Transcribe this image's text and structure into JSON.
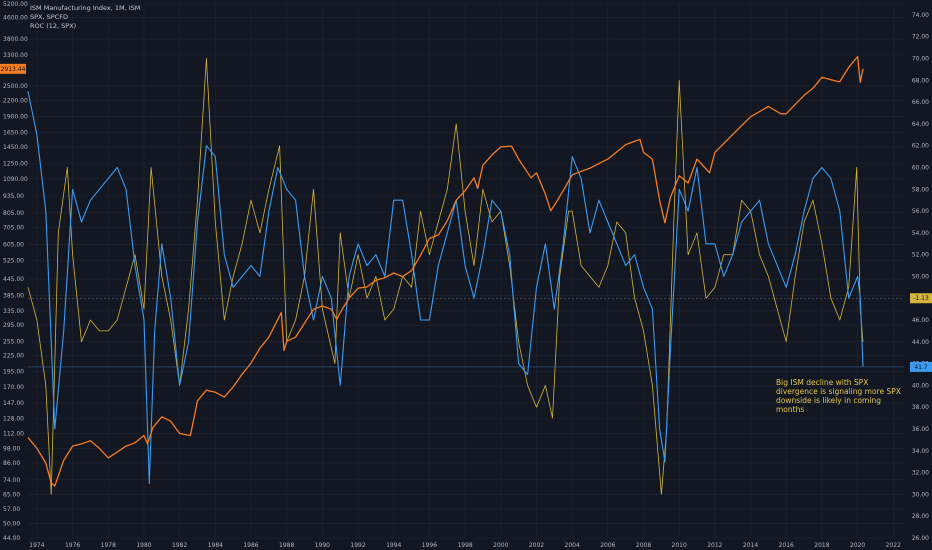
{
  "legend": {
    "line1": "ISM Manufacturing Index, 1M, ISM",
    "line2": "SPX, SPCFD",
    "line3": "ROC (12, SPX)"
  },
  "annotation": "Big ISM decline with SPX divergence is signaling more SPX downside is likely in coming months",
  "colors": {
    "background": "#131722",
    "spx": "#f57c1f",
    "ism": "#3b9bf2",
    "roc": "#d4b53a",
    "grid": "#1f2533"
  },
  "chart_data": {
    "type": "line",
    "x_ticks": [
      "1974",
      "1976",
      "1978",
      "1980",
      "1982",
      "1984",
      "1986",
      "1988",
      "1990",
      "1992",
      "1994",
      "1996",
      "1998",
      "2000",
      "2002",
      "2004",
      "2006",
      "2008",
      "2010",
      "2012",
      "2014",
      "2016",
      "2018",
      "2020",
      "2022"
    ],
    "xlim": [
      1973.5,
      2022.6
    ],
    "left_axis": {
      "scale": "log",
      "ylim": [
        44,
        5200
      ],
      "ticks": [
        "5200.00",
        "4600.00",
        "3800.00",
        "3300.00",
        "2500.00",
        "2200.00",
        "1900.00",
        "1650.00",
        "1450.00",
        "1250.00",
        "1090.00",
        "935.00",
        "805.00",
        "705.00",
        "605.00",
        "525.00",
        "445.00",
        "385.00",
        "335.00",
        "295.00",
        "255.00",
        "225.00",
        "195.00",
        "170.00",
        "147.00",
        "128.00",
        "112.00",
        "98.00",
        "86.00",
        "74.00",
        "65.00",
        "57.00",
        "50.00",
        "44.00"
      ],
      "current_label": "2913.44"
    },
    "right_axis": {
      "scale": "linear",
      "ylim": [
        26,
        75
      ],
      "ticks": [
        "74.00",
        "72.00",
        "70.00",
        "68.00",
        "66.00",
        "64.00",
        "62.00",
        "60.00",
        "58.00",
        "56.00",
        "54.00",
        "52.00",
        "50.00",
        "48.00",
        "46.00",
        "44.00",
        "42.00",
        "40.00",
        "38.00",
        "36.00",
        "34.00",
        "32.00",
        "30.00",
        "28.00",
        "26.00"
      ],
      "roc_label": "-1.13",
      "ism_label": "41.7"
    },
    "series": [
      {
        "name": "SPX",
        "axis": "left",
        "x": [
          1973.5,
          1974.0,
          1974.5,
          1974.8,
          1975.0,
          1975.5,
          1976.0,
          1976.5,
          1977.0,
          1977.5,
          1978.0,
          1978.5,
          1979.0,
          1979.5,
          1980.0,
          1980.2,
          1980.5,
          1981.0,
          1981.5,
          1982.0,
          1982.6,
          1983.0,
          1983.5,
          1984.0,
          1984.5,
          1985.0,
          1985.5,
          1986.0,
          1986.5,
          1987.0,
          1987.7,
          1987.85,
          1988.0,
          1988.5,
          1989.0,
          1989.5,
          1990.0,
          1990.5,
          1990.8,
          1991.0,
          1991.5,
          1992.0,
          1992.5,
          1993.0,
          1993.5,
          1994.0,
          1994.5,
          1995.0,
          1995.5,
          1996.0,
          1996.5,
          1997.0,
          1997.5,
          1998.0,
          1998.5,
          1998.7,
          1999.0,
          1999.5,
          2000.0,
          2000.6,
          2001.0,
          2001.7,
          2002.0,
          2002.5,
          2002.8,
          2003.0,
          2003.5,
          2004.0,
          2005.0,
          2006.0,
          2007.0,
          2007.8,
          2008.0,
          2008.5,
          2008.9,
          2009.2,
          2009.5,
          2010.0,
          2010.5,
          2011.0,
          2011.7,
          2012.0,
          2013.0,
          2014.0,
          2015.0,
          2015.7,
          2016.0,
          2016.5,
          2017.0,
          2017.5,
          2018.0,
          2018.9,
          2019.0,
          2019.5,
          2020.0,
          2020.15,
          2020.3
        ],
        "values": [
          108,
          98,
          86,
          72,
          70,
          88,
          100,
          102,
          105,
          98,
          90,
          95,
          100,
          103,
          110,
          102,
          118,
          130,
          125,
          112,
          110,
          150,
          165,
          162,
          155,
          170,
          190,
          210,
          240,
          265,
          330,
          235,
          255,
          265,
          300,
          340,
          350,
          340,
          310,
          330,
          375,
          410,
          415,
          440,
          450,
          470,
          455,
          480,
          550,
          640,
          660,
          750,
          900,
          980,
          1100,
          1000,
          1230,
          1350,
          1450,
          1460,
          1300,
          1100,
          1150,
          950,
          820,
          860,
          980,
          1130,
          1200,
          1300,
          1480,
          1550,
          1380,
          1300,
          900,
          735,
          920,
          1120,
          1050,
          1300,
          1150,
          1380,
          1620,
          1900,
          2080,
          1950,
          1950,
          2120,
          2300,
          2450,
          2700,
          2600,
          2600,
          2950,
          3250,
          2580,
          2913
        ]
      },
      {
        "name": "ISM Manufacturing Index",
        "axis": "right",
        "x": [
          1973.5,
          1974.0,
          1974.5,
          1975.0,
          1975.5,
          1976.0,
          1976.5,
          1977.0,
          1977.5,
          1978.0,
          1978.5,
          1979.0,
          1979.5,
          1980.0,
          1980.3,
          1980.6,
          1981.0,
          1981.5,
          1982.0,
          1982.5,
          1983.0,
          1983.5,
          1984.0,
          1984.5,
          1985.0,
          1985.5,
          1986.0,
          1986.5,
          1987.0,
          1987.5,
          1988.0,
          1988.5,
          1989.0,
          1989.5,
          1990.0,
          1990.5,
          1991.0,
          1991.5,
          1992.0,
          1992.5,
          1993.0,
          1993.5,
          1994.0,
          1994.5,
          1995.0,
          1995.5,
          1996.0,
          1996.5,
          1997.0,
          1997.5,
          1998.0,
          1998.5,
          1999.0,
          1999.5,
          2000.0,
          2000.5,
          2001.0,
          2001.5,
          2002.0,
          2002.5,
          2003.0,
          2003.5,
          2004.0,
          2004.5,
          2005.0,
          2005.5,
          2006.0,
          2006.5,
          2007.0,
          2007.5,
          2008.0,
          2008.5,
          2008.9,
          2009.2,
          2009.5,
          2010.0,
          2010.5,
          2011.0,
          2011.5,
          2012.0,
          2012.5,
          2013.0,
          2013.5,
          2014.0,
          2014.5,
          2015.0,
          2015.5,
          2016.0,
          2016.5,
          2017.0,
          2017.5,
          2018.0,
          2018.5,
          2019.0,
          2019.5,
          2020.0,
          2020.15,
          2020.3
        ],
        "values": [
          67,
          63,
          56,
          36,
          45,
          58,
          55,
          57,
          58,
          59,
          60,
          58,
          51,
          46,
          31,
          45,
          53,
          48,
          40,
          44,
          55,
          62,
          61,
          52,
          49,
          50,
          51,
          50,
          56,
          60,
          58,
          57,
          50,
          46,
          50,
          48,
          40,
          50,
          53,
          51,
          52,
          50,
          57,
          57,
          52,
          46,
          46,
          51,
          54,
          57,
          51,
          48,
          52,
          57,
          56,
          52,
          42,
          41,
          49,
          53,
          47,
          53,
          61,
          59,
          54,
          57,
          55,
          53,
          51,
          52,
          49,
          47,
          36,
          33,
          43,
          58,
          56,
          60,
          53,
          53,
          50,
          52,
          55,
          56,
          57,
          53,
          51,
          49,
          52,
          56,
          59,
          60,
          59,
          56,
          48,
          50,
          48,
          41.7
        ]
      },
      {
        "name": "ROC (12, SPX)",
        "axis": "right",
        "x": [
          1973.5,
          1974.0,
          1974.5,
          1974.8,
          1975.2,
          1975.7,
          1976.0,
          1976.5,
          1977.0,
          1977.5,
          1978.0,
          1978.5,
          1979.0,
          1979.5,
          1980.0,
          1980.4,
          1981.0,
          1981.5,
          1982.0,
          1982.5,
          1983.0,
          1983.5,
          1984.0,
          1984.5,
          1985.0,
          1985.5,
          1986.0,
          1986.5,
          1987.0,
          1987.6,
          1988.0,
          1988.5,
          1989.0,
          1989.5,
          1990.0,
          1990.7,
          1991.0,
          1991.5,
          1992.0,
          1992.5,
          1993.0,
          1993.5,
          1994.0,
          1994.5,
          1995.0,
          1995.5,
          1996.0,
          1996.5,
          1997.0,
          1997.5,
          1998.0,
          1998.5,
          1999.0,
          1999.5,
          2000.0,
          2000.5,
          2001.0,
          2001.5,
          2002.0,
          2002.5,
          2002.9,
          2003.3,
          2003.8,
          2004.0,
          2004.5,
          2005.0,
          2005.5,
          2006.0,
          2006.5,
          2007.0,
          2007.5,
          2008.0,
          2008.5,
          2009.0,
          2009.3,
          2009.7,
          2010.0,
          2010.5,
          2011.0,
          2011.5,
          2012.0,
          2012.5,
          2013.0,
          2013.5,
          2014.0,
          2014.5,
          2015.0,
          2015.5,
          2016.0,
          2016.5,
          2017.0,
          2017.5,
          2018.0,
          2018.5,
          2019.0,
          2019.5,
          2019.95,
          2020.15,
          2020.3
        ],
        "values": [
          49,
          46,
          40,
          30,
          54,
          60,
          52,
          44,
          46,
          45,
          45,
          46,
          49,
          52,
          47,
          60,
          50,
          46,
          40,
          47,
          57,
          70,
          55,
          46,
          50,
          53,
          57,
          54,
          58,
          62,
          44,
          46,
          50,
          58,
          47,
          42,
          54,
          48,
          52,
          48,
          50,
          46,
          47,
          50,
          49,
          56,
          52,
          55,
          58,
          64,
          56,
          51,
          58,
          55,
          56,
          51,
          44,
          40,
          38,
          40,
          37,
          50,
          56,
          56,
          51,
          50,
          49,
          51,
          55,
          54,
          48,
          45,
          40,
          30,
          36,
          55,
          68,
          52,
          54,
          48,
          49,
          52,
          52,
          57,
          56,
          52,
          50,
          47,
          44,
          50,
          55,
          57,
          53,
          48,
          46,
          49,
          60,
          47,
          44
        ]
      }
    ]
  }
}
